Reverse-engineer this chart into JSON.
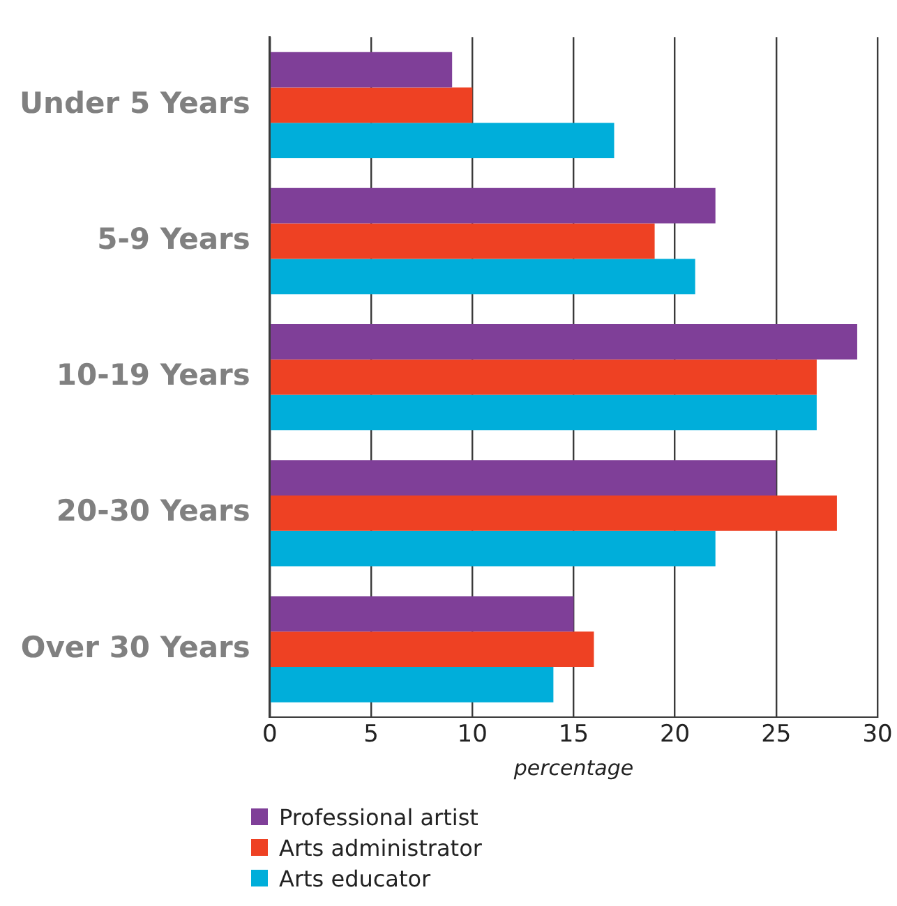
{
  "chart_data": {
    "type": "bar",
    "orientation": "horizontal",
    "xlabel": "percentage",
    "categories": [
      "Under 5 Years",
      "5-9 Years",
      "10-19 Years",
      "20-30 Years",
      "Over 30 Years"
    ],
    "series": [
      {
        "name": "Professional artist",
        "color": "#7f3f98",
        "values": [
          9,
          22,
          29,
          25,
          15
        ]
      },
      {
        "name": "Arts administrator",
        "color": "#ee4123",
        "values": [
          10,
          19,
          27,
          28,
          16
        ]
      },
      {
        "name": "Arts educator",
        "color": "#00aeda",
        "values": [
          17,
          21,
          27,
          22,
          14
        ]
      }
    ],
    "xlim": [
      0,
      30
    ],
    "xticks": [
      0,
      5,
      10,
      15,
      20,
      25,
      30
    ],
    "grid": "x",
    "legend": "bottom left"
  }
}
